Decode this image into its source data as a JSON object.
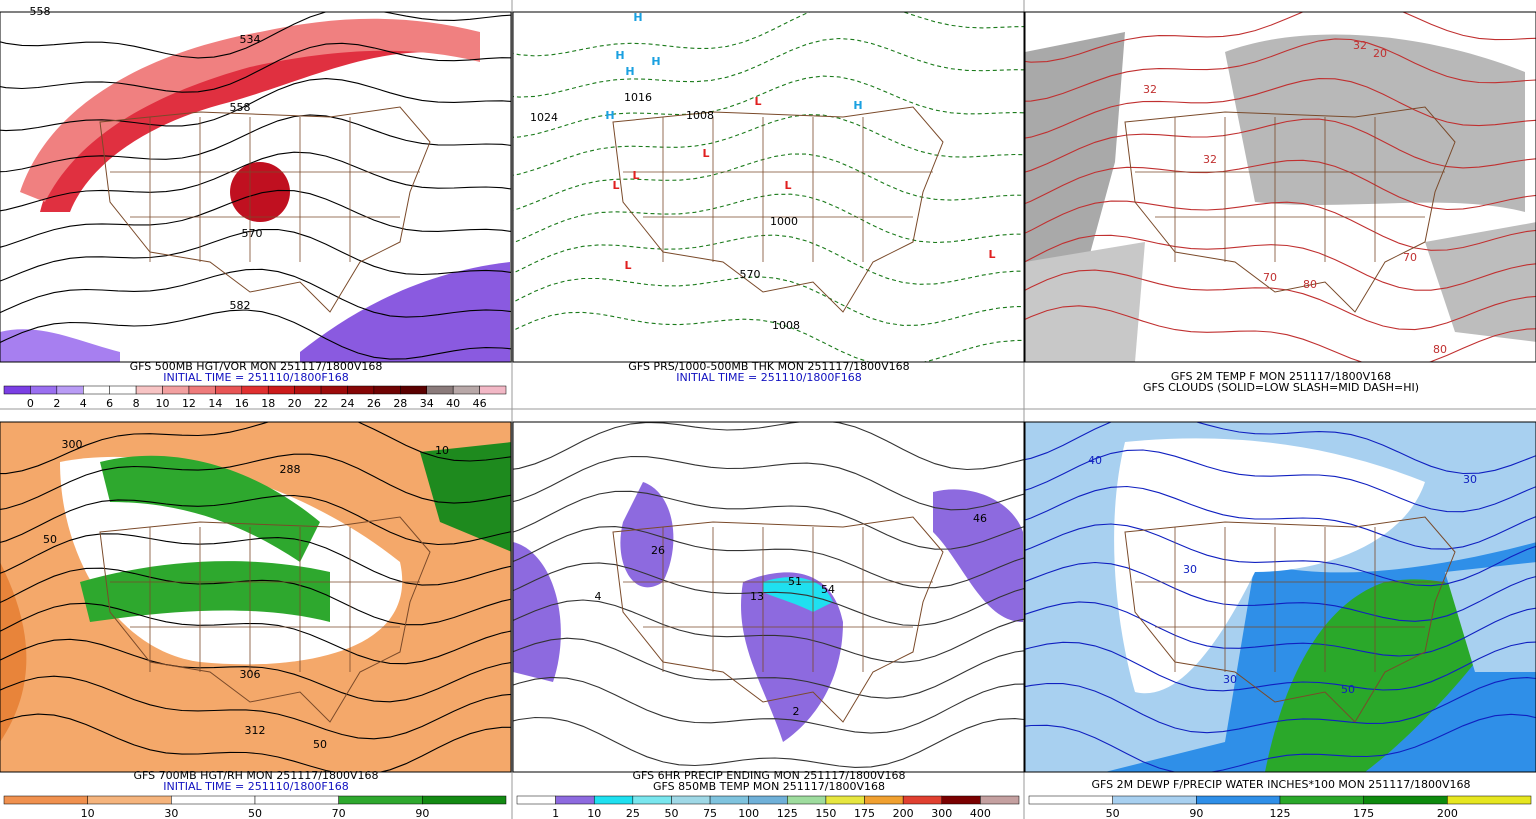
{
  "panels": [
    {
      "caption": [
        "GFS 500MB HGT/VOR MON 251117/1800V168",
        "INITIAL TIME = 251110/1800F168"
      ],
      "map_labels": [
        "558",
        "534",
        "558",
        "570",
        "582"
      ],
      "colorbar": {
        "labels": [
          0,
          2,
          4,
          6,
          8,
          10,
          12,
          14,
          16,
          18,
          20,
          22,
          24,
          26,
          28,
          34,
          40,
          46
        ],
        "colors": [
          "#7b3fe4",
          "#9a6ff0",
          "#b99cf5",
          "#ffffff",
          "#ffffff",
          "#f7c4c4",
          "#f2a0a0",
          "#ee7b7b",
          "#e85555",
          "#e03030",
          "#cc1b1b",
          "#b51212",
          "#9c0b0b",
          "#850606",
          "#6f0303",
          "#5a0000",
          "#8a7a7a",
          "#b8a8a8",
          "#f2b8c6"
        ]
      }
    },
    {
      "caption": [
        "GFS PRS/1000-500MB THK MON 251117/1800V168",
        "INITIAL TIME = 251110/1800F168"
      ],
      "map_labels": [
        "H",
        "H",
        "H",
        "H",
        "H",
        "H",
        "L",
        "L",
        "L",
        "L",
        "L",
        "L",
        "L",
        "1024",
        "1016",
        "1008",
        "1000",
        "570",
        "1008"
      ]
    },
    {
      "caption": [
        "GFS 2M TEMP F MON 251117/1800V168",
        "GFS CLOUDS (SOLID=LOW SLASH=MID DASH=HI)"
      ],
      "map_labels": [
        "32",
        "32",
        "32",
        "20",
        "70",
        "80",
        "80",
        "70"
      ]
    },
    {
      "caption": [
        "GFS 700MB HGT/RH MON 251117/1800V168",
        "INITIAL TIME = 251110/1800F168"
      ],
      "map_labels": [
        "300",
        "288",
        "50",
        "306",
        "312",
        "10",
        "50"
      ],
      "colorbar": {
        "labels": [
          10,
          30,
          50,
          70,
          90
        ],
        "colors": [
          "#f0914f",
          "#f5b47d",
          "#ffffff",
          "#ffffff",
          "#2ea82e",
          "#138a13"
        ]
      }
    },
    {
      "caption": [
        "GFS 6HR PRECIP ENDING MON 251117/1800V168",
        "GFS 850MB TEMP MON 251117/1800V168"
      ],
      "map_labels": [
        "54",
        "51",
        "13",
        "4",
        "26",
        "46",
        "2"
      ],
      "colorbar": {
        "labels": [
          1,
          10,
          25,
          50,
          75,
          100,
          125,
          150,
          175,
          200,
          300,
          400
        ],
        "colors": [
          "#ffffff",
          "#8d6adf",
          "#1fe0f0",
          "#79e6ee",
          "#9fd8e6",
          "#7fc3de",
          "#6fb0d8",
          "#9edc9e",
          "#e6e640",
          "#f0a030",
          "#e04030",
          "#7a0000",
          "#c4a0a0"
        ]
      }
    },
    {
      "caption": [
        "GFS 2M DEWP F/PRECIP WATER INCHES*100 MON 251117/1800V168"
      ],
      "map_labels": [
        "30",
        "30",
        "30",
        "50",
        "40"
      ],
      "colorbar": {
        "labels": [
          50,
          90,
          125,
          175,
          200
        ],
        "colors": [
          "#ffffff",
          "#a8d0f0",
          "#2f8fe8",
          "#2aa82a",
          "#0e8a0e",
          "#e6e620"
        ]
      }
    }
  ]
}
